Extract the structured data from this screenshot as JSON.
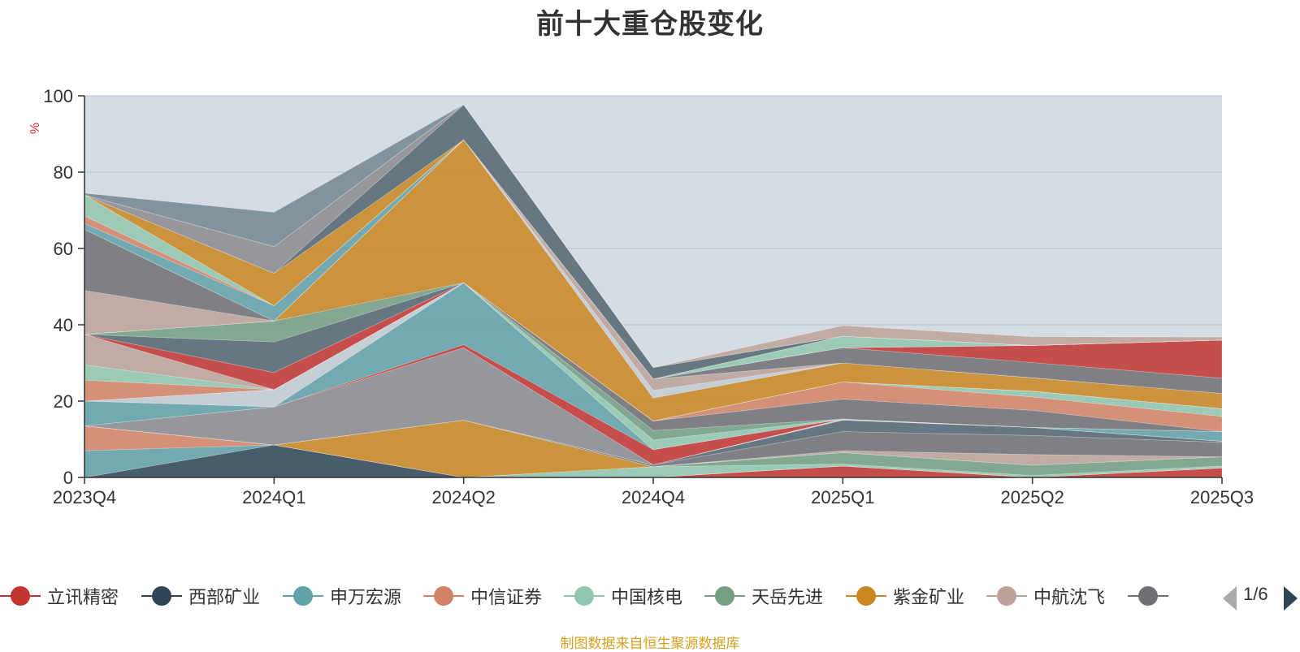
{
  "chart_data": {
    "type": "area",
    "stacked": true,
    "title": "前十大重仓股变化",
    "ylabel": "%",
    "ylim": [
      0,
      100
    ],
    "yticks": [
      0,
      20,
      40,
      60,
      80,
      100
    ],
    "categories": [
      "2023Q4",
      "2024Q1",
      "2024Q2",
      "2024Q4",
      "2025Q1",
      "2025Q2",
      "2025Q3"
    ],
    "grid": true,
    "legend_position": "bottom",
    "series": [
      {
        "name": "立讯精密",
        "color": "#c23531",
        "values": [
          0,
          0,
          0,
          0,
          3,
          0,
          2.5
        ]
      },
      {
        "name": "西部矿业",
        "color": "#2f4554",
        "values": [
          0,
          8.5,
          0,
          0,
          0,
          0,
          0
        ]
      },
      {
        "name": "申万宏源",
        "color": "#61a0a8",
        "values": [
          7,
          0,
          0,
          0,
          0,
          0,
          0
        ]
      },
      {
        "name": "中信证券",
        "color": "#d48265",
        "values": [
          6.5,
          0,
          0,
          0,
          0,
          0,
          0
        ]
      },
      {
        "name": "中国核电",
        "color": "#91c7ae",
        "values": [
          0,
          0,
          0,
          2.8,
          0.5,
          0.5,
          0.5
        ]
      },
      {
        "name": "天岳先进",
        "color": "#749f83",
        "values": [
          0,
          0,
          0,
          0,
          3,
          2.7,
          2.4
        ]
      },
      {
        "name": "紫金矿业",
        "color": "#ca8622",
        "values": [
          0,
          0,
          15,
          0,
          0,
          0,
          0
        ]
      },
      {
        "name": "中航沈飞",
        "color": "#bda29a",
        "values": [
          0,
          0,
          0,
          0,
          0.5,
          2.8,
          0
        ]
      },
      {
        "name": "",
        "color": "#6e7074",
        "values": [
          0,
          0,
          0,
          0.5,
          5,
          5,
          3.8
        ]
      },
      {
        "name": "",
        "color": "#546570",
        "values": [
          0,
          0,
          0,
          0,
          3,
          2.1,
          0.3
        ]
      },
      {
        "name": "",
        "color": "#c4ccd3",
        "values": [
          0,
          0,
          0,
          0,
          0.3,
          0,
          0
        ]
      },
      {
        "name": "",
        "color": "#8a8b8f",
        "values": [
          0,
          10,
          19,
          0,
          0,
          0,
          0
        ]
      },
      {
        "name": "",
        "color": "#c23531",
        "values": [
          0,
          0,
          0.8,
          4,
          0,
          0,
          0
        ]
      },
      {
        "name": "",
        "color": "#61a0a8",
        "values": [
          6.5,
          0,
          16.2,
          0,
          0,
          0,
          2.5
        ]
      },
      {
        "name": "",
        "color": "#c4ccd3",
        "values": [
          0,
          4.5,
          0,
          0,
          0,
          0,
          0
        ]
      },
      {
        "name": "",
        "color": "#91c7ae",
        "values": [
          0,
          0,
          0,
          2.5,
          0,
          0,
          0
        ]
      },
      {
        "name": "",
        "color": "#749f83",
        "values": [
          0,
          0,
          0,
          2.5,
          0,
          0,
          0
        ]
      },
      {
        "name": "",
        "color": "#6e7074",
        "values": [
          0,
          0,
          0,
          2.5,
          5.2,
          4.5,
          0
        ]
      },
      {
        "name": "",
        "color": "#d48265",
        "values": [
          5.5,
          0,
          0,
          0,
          4.5,
          3.5,
          4
        ]
      },
      {
        "name": "",
        "color": "#91c7ae",
        "values": [
          4,
          0,
          0,
          0,
          0,
          1.5,
          2
        ]
      },
      {
        "name": "",
        "color": "#bda29a",
        "values": [
          8,
          0,
          0,
          0,
          0,
          0,
          0
        ]
      },
      {
        "name": "",
        "color": "#c23531",
        "values": [
          0,
          4.5,
          0,
          0,
          0,
          0,
          0
        ]
      },
      {
        "name": "",
        "color": "#546570",
        "values": [
          0,
          8,
          0,
          0,
          0,
          0,
          0
        ]
      },
      {
        "name": "",
        "color": "#749f83",
        "values": [
          0,
          5.5,
          0,
          0,
          0,
          0,
          0
        ]
      },
      {
        "name": "",
        "color": "#ca8622",
        "values": [
          0,
          0,
          37.5,
          6,
          5,
          3.5,
          4
        ]
      },
      {
        "name": "",
        "color": "#c4ccd3",
        "values": [
          0,
          0,
          0,
          2,
          0,
          0,
          0
        ]
      },
      {
        "name": "",
        "color": "#bda29a",
        "values": [
          11.5,
          0,
          0,
          3,
          0,
          0,
          0
        ]
      },
      {
        "name": "",
        "color": "#6e7074",
        "values": [
          16,
          0,
          0,
          0,
          4,
          4,
          4
        ]
      },
      {
        "name": "",
        "color": "#c23531",
        "values": [
          0,
          0,
          0,
          0,
          0,
          4.5,
          10
        ]
      },
      {
        "name": "",
        "color": "#61a0a8",
        "values": [
          1.5,
          4,
          0,
          0,
          0,
          0,
          0
        ]
      },
      {
        "name": "",
        "color": "#d48265",
        "values": [
          2,
          0,
          0,
          0,
          0,
          0,
          0
        ]
      },
      {
        "name": "",
        "color": "#91c7ae",
        "values": [
          5.5,
          0,
          0,
          0,
          3,
          0,
          0
        ]
      },
      {
        "name": "",
        "color": "#749f83",
        "values": [
          0,
          0,
          0,
          0,
          0,
          0,
          0
        ]
      },
      {
        "name": "",
        "color": "#ca8622",
        "values": [
          0,
          8.5,
          0,
          0,
          0,
          0,
          0
        ]
      },
      {
        "name": "",
        "color": "#546570",
        "values": [
          0,
          0,
          9.2,
          3,
          0,
          0,
          0
        ]
      },
      {
        "name": "",
        "color": "#8a8b8f",
        "values": [
          0,
          7,
          0,
          0,
          0,
          0,
          0
        ]
      },
      {
        "name": "",
        "color": "#bda29a",
        "values": [
          0,
          0,
          0,
          0,
          2.8,
          2.3,
          0.8
        ]
      },
      {
        "name": "",
        "color": "#748690",
        "values": [
          0.5,
          9,
          0,
          0,
          0,
          0,
          0
        ]
      }
    ]
  },
  "legend": {
    "items": [
      {
        "name": "立讯精密",
        "color": "#c23531"
      },
      {
        "name": "西部矿业",
        "color": "#2f4554"
      },
      {
        "name": "申万宏源",
        "color": "#61a0a8"
      },
      {
        "name": "中信证券",
        "color": "#d48265"
      },
      {
        "name": "中国核电",
        "color": "#91c7ae"
      },
      {
        "name": "天岳先进",
        "color": "#749f83"
      },
      {
        "name": "紫金矿业",
        "color": "#ca8622"
      },
      {
        "name": "中航沈飞",
        "color": "#bda29a"
      },
      {
        "name": "",
        "color": "#6e7074"
      }
    ],
    "page": "1/6"
  },
  "source_note": "制图数据来自恒生聚源数据库",
  "colors": {
    "plot_background": "#d6dce4",
    "title": "#333333",
    "ylabel": "#e03030",
    "source_note": "#d4a020"
  }
}
